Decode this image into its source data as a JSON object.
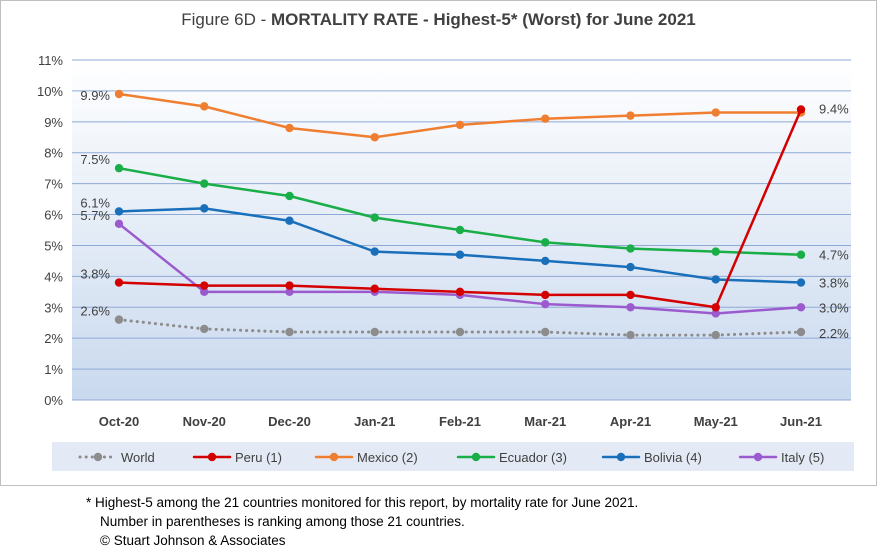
{
  "title": {
    "prefix": "Figure 6D  - ",
    "main": "MORTALITY RATE - Highest-5* (Worst) for June 2021"
  },
  "footnote": {
    "line1": "* Highest-5 among the 21 countries monitored for this report, by mortality rate for June 2021.",
    "line2": "Number in parentheses is ranking among those 21 countries.",
    "line3": "© Stuart Johnson & Associates"
  },
  "chart_data": {
    "type": "line",
    "categories": [
      "Oct-20",
      "Nov-20",
      "Dec-20",
      "Jan-21",
      "Feb-21",
      "Mar-21",
      "Apr-21",
      "May-21",
      "Jun-21"
    ],
    "y_ticks": [
      "0%",
      "1%",
      "2%",
      "3%",
      "4%",
      "5%",
      "6%",
      "7%",
      "8%",
      "9%",
      "10%",
      "11%"
    ],
    "ylim": [
      0,
      11
    ],
    "grid": true,
    "legend_position": "bottom",
    "series": [
      {
        "name": "World",
        "color": "#8c8c8c",
        "dashed": true,
        "values": [
          2.6,
          2.3,
          2.2,
          2.2,
          2.2,
          2.2,
          2.1,
          2.1,
          2.2
        ],
        "label_start": "2.6%",
        "label_end": "2.2%"
      },
      {
        "name": "Peru (1)",
        "color": "#d40000",
        "dashed": false,
        "values": [
          3.8,
          3.7,
          3.7,
          3.6,
          3.5,
          3.4,
          3.4,
          3.0,
          9.4
        ],
        "label_start": "3.8%",
        "label_end": "9.4%"
      },
      {
        "name": "Mexico (2)",
        "color": "#f07e30",
        "dashed": false,
        "values": [
          9.9,
          9.5,
          8.8,
          8.5,
          8.9,
          9.1,
          9.2,
          9.3,
          9.3
        ],
        "label_start": "9.9%",
        "label_end": ""
      },
      {
        "name": "Ecuador (3)",
        "color": "#19ae48",
        "dashed": false,
        "values": [
          7.5,
          7.0,
          6.6,
          5.9,
          5.5,
          5.1,
          4.9,
          4.8,
          4.7
        ],
        "label_start": "7.5%",
        "label_end": "4.7%"
      },
      {
        "name": "Bolivia (4)",
        "color": "#1a6fba",
        "dashed": false,
        "values": [
          6.1,
          6.2,
          5.8,
          4.8,
          4.7,
          4.5,
          4.3,
          3.9,
          3.8
        ],
        "label_start": "6.1%",
        "label_end": "3.8%"
      },
      {
        "name": "Italy (5)",
        "color": "#9b5bcf",
        "dashed": false,
        "values": [
          5.7,
          3.5,
          3.5,
          3.5,
          3.4,
          3.1,
          3.0,
          2.8,
          3.0
        ],
        "label_start": "5.7%",
        "label_end": "3.0%"
      }
    ]
  },
  "colors": {
    "plot_background": "#c9d9ee",
    "legend_background": "#e4eaf5",
    "gridline": "#8fa9d6"
  }
}
